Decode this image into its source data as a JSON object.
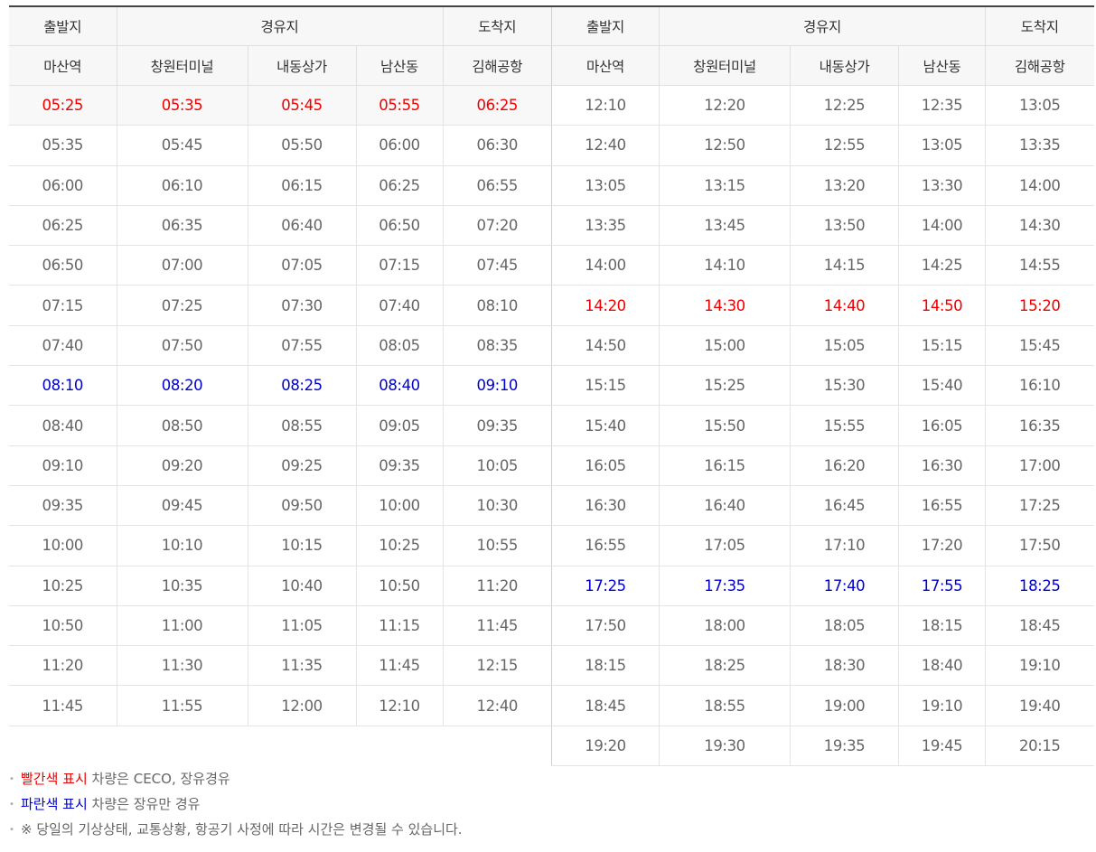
{
  "headers": {
    "departure": "출발지",
    "via": "경유지",
    "arrival": "도착지",
    "stops": [
      "마산역",
      "창원터미널",
      "내동상가",
      "남산동",
      "김해공항"
    ]
  },
  "left_rows": [
    {
      "type": "red",
      "times": [
        "05:25",
        "05:35",
        "05:45",
        "05:55",
        "06:25"
      ]
    },
    {
      "type": "",
      "times": [
        "05:35",
        "05:45",
        "05:50",
        "06:00",
        "06:30"
      ]
    },
    {
      "type": "",
      "times": [
        "06:00",
        "06:10",
        "06:15",
        "06:25",
        "06:55"
      ]
    },
    {
      "type": "",
      "times": [
        "06:25",
        "06:35",
        "06:40",
        "06:50",
        "07:20"
      ]
    },
    {
      "type": "",
      "times": [
        "06:50",
        "07:00",
        "07:05",
        "07:15",
        "07:45"
      ]
    },
    {
      "type": "",
      "times": [
        "07:15",
        "07:25",
        "07:30",
        "07:40",
        "08:10"
      ]
    },
    {
      "type": "",
      "times": [
        "07:40",
        "07:50",
        "07:55",
        "08:05",
        "08:35"
      ]
    },
    {
      "type": "blue",
      "times": [
        "08:10",
        "08:20",
        "08:25",
        "08:40",
        "09:10"
      ]
    },
    {
      "type": "",
      "times": [
        "08:40",
        "08:50",
        "08:55",
        "09:05",
        "09:35"
      ]
    },
    {
      "type": "",
      "times": [
        "09:10",
        "09:20",
        "09:25",
        "09:35",
        "10:05"
      ]
    },
    {
      "type": "",
      "times": [
        "09:35",
        "09:45",
        "09:50",
        "10:00",
        "10:30"
      ]
    },
    {
      "type": "",
      "times": [
        "10:00",
        "10:10",
        "10:15",
        "10:25",
        "10:55"
      ]
    },
    {
      "type": "",
      "times": [
        "10:25",
        "10:35",
        "10:40",
        "10:50",
        "11:20"
      ]
    },
    {
      "type": "",
      "times": [
        "10:50",
        "11:00",
        "11:05",
        "11:15",
        "11:45"
      ]
    },
    {
      "type": "",
      "times": [
        "11:20",
        "11:30",
        "11:35",
        "11:45",
        "12:15"
      ]
    },
    {
      "type": "",
      "times": [
        "11:45",
        "11:55",
        "12:00",
        "12:10",
        "12:40"
      ]
    }
  ],
  "right_rows": [
    {
      "type": "",
      "times": [
        "12:10",
        "12:20",
        "12:25",
        "12:35",
        "13:05"
      ]
    },
    {
      "type": "",
      "times": [
        "12:40",
        "12:50",
        "12:55",
        "13:05",
        "13:35"
      ]
    },
    {
      "type": "",
      "times": [
        "13:05",
        "13:15",
        "13:20",
        "13:30",
        "14:00"
      ]
    },
    {
      "type": "",
      "times": [
        "13:35",
        "13:45",
        "13:50",
        "14:00",
        "14:30"
      ]
    },
    {
      "type": "",
      "times": [
        "14:00",
        "14:10",
        "14:15",
        "14:25",
        "14:55"
      ]
    },
    {
      "type": "red",
      "times": [
        "14:20",
        "14:30",
        "14:40",
        "14:50",
        "15:20"
      ]
    },
    {
      "type": "",
      "times": [
        "14:50",
        "15:00",
        "15:05",
        "15:15",
        "15:45"
      ]
    },
    {
      "type": "",
      "times": [
        "15:15",
        "15:25",
        "15:30",
        "15:40",
        "16:10"
      ]
    },
    {
      "type": "",
      "times": [
        "15:40",
        "15:50",
        "15:55",
        "16:05",
        "16:35"
      ]
    },
    {
      "type": "",
      "times": [
        "16:05",
        "16:15",
        "16:20",
        "16:30",
        "17:00"
      ]
    },
    {
      "type": "",
      "times": [
        "16:30",
        "16:40",
        "16:45",
        "16:55",
        "17:25"
      ]
    },
    {
      "type": "",
      "times": [
        "16:55",
        "17:05",
        "17:10",
        "17:20",
        "17:50"
      ]
    },
    {
      "type": "blue",
      "times": [
        "17:25",
        "17:35",
        "17:40",
        "17:55",
        "18:25"
      ]
    },
    {
      "type": "",
      "times": [
        "17:50",
        "18:00",
        "18:05",
        "18:15",
        "18:45"
      ]
    },
    {
      "type": "",
      "times": [
        "18:15",
        "18:25",
        "18:30",
        "18:40",
        "19:10"
      ]
    },
    {
      "type": "",
      "times": [
        "18:45",
        "18:55",
        "19:00",
        "19:10",
        "19:40"
      ]
    },
    {
      "type": "",
      "times": [
        "19:20",
        "19:30",
        "19:35",
        "19:45",
        "20:15"
      ]
    }
  ],
  "notes": {
    "red_label": "빨간색 표시",
    "red_text": " 차량은 CECO, 장유경유",
    "blue_label": "파란색 표시",
    "blue_text": " 차량은 장유만 경유",
    "notice": "※ 당일의 기상상태, 교통상황, 항공기 사정에 따라 시간은 변경될 수 있습니다.",
    "bullet": "•"
  },
  "colors": {
    "red": "#ee0000",
    "blue": "#0000cc",
    "text": "#666666"
  }
}
